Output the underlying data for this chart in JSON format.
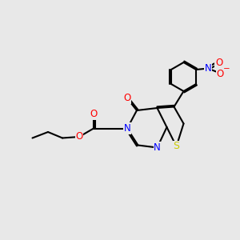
{
  "background_color": "#e8e8e8",
  "figsize": [
    3.0,
    3.0
  ],
  "dpi": 100,
  "bond_color": "#000000",
  "bond_width": 1.5,
  "font_size": 8.5,
  "colors": {
    "N": "#0000ff",
    "O": "#ff0000",
    "S": "#cccc00",
    "C": "#000000"
  }
}
